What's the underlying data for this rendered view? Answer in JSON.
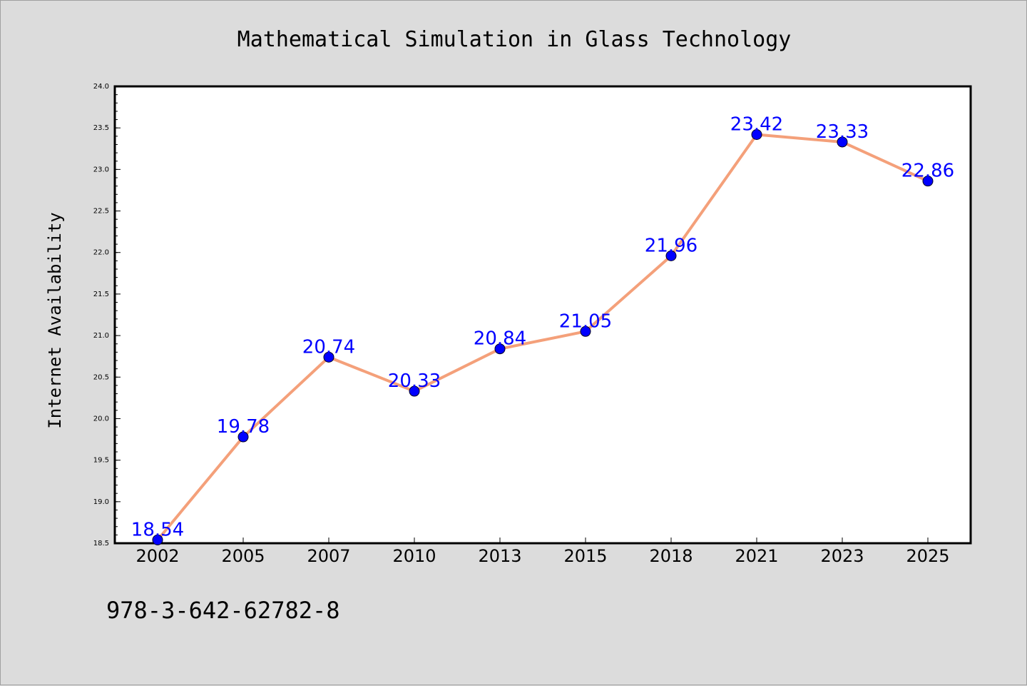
{
  "chart_data": {
    "type": "line",
    "title": "Mathematical Simulation in Glass Technology",
    "xlabel": "",
    "ylabel": "Internet Availability",
    "categories": [
      "2002",
      "2005",
      "2007",
      "2010",
      "2013",
      "2015",
      "2018",
      "2021",
      "2023",
      "2025"
    ],
    "series": [
      {
        "values": [
          18.54,
          19.78,
          20.74,
          20.33,
          20.84,
          21.05,
          21.96,
          23.42,
          23.33,
          22.86
        ],
        "line_color": "#f4a07a",
        "marker_color": "#0000ff"
      }
    ],
    "ylim": [
      18.5,
      24.0
    ],
    "yticks": [
      "18.5",
      "19.0",
      "19.5",
      "20.0",
      "20.5",
      "21.0",
      "21.5",
      "22.0",
      "22.5",
      "23.0",
      "23.5",
      "24.0"
    ],
    "grid": false,
    "data_labels": true
  },
  "footer": {
    "isbn": "978-3-642-62782-8"
  },
  "colors": {
    "background": "#dcdcdc",
    "plot_background": "#ffffff",
    "line": "#f4a07a",
    "marker": "#0000ff",
    "data_label": "#0000ff"
  }
}
